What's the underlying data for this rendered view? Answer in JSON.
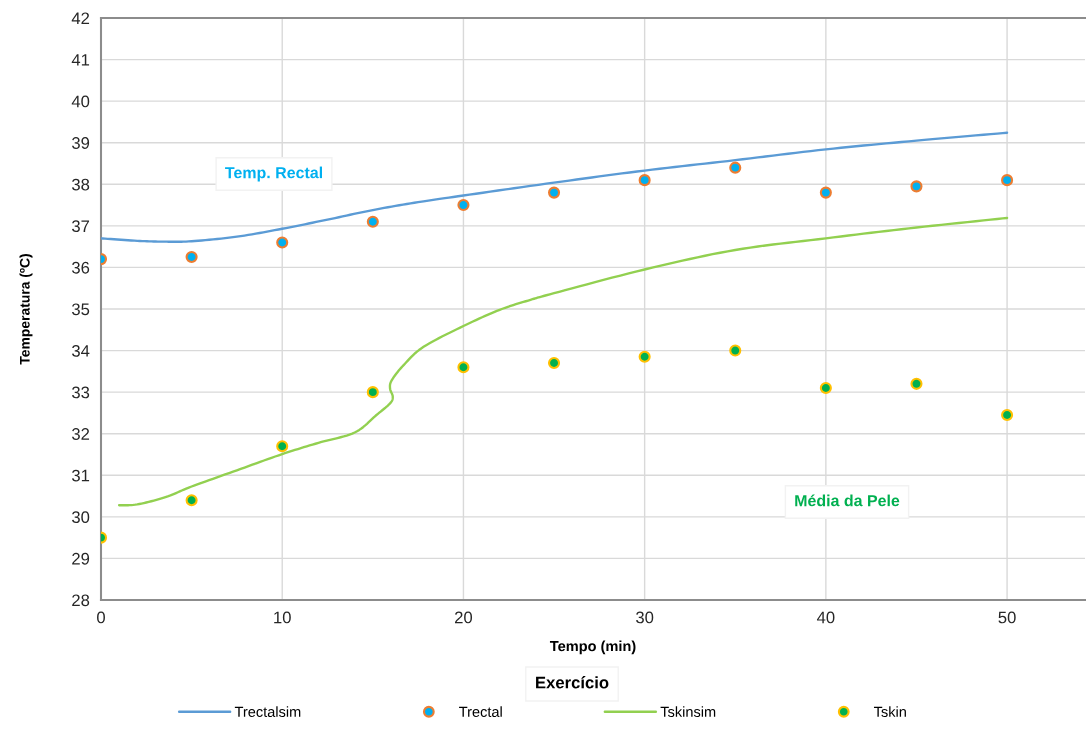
{
  "chart_data": {
    "type": "scatter",
    "xlabel": "Tempo (min)",
    "ylabel": "Temperatura (ºC)",
    "x": [
      0,
      5,
      10,
      15,
      20,
      25,
      30,
      35,
      40,
      45,
      50
    ],
    "series": [
      {
        "name": "Trectalsim",
        "type": "line",
        "marker": "none",
        "color": "#5b9bd5",
        "x": [
          0,
          2,
          3.5,
          5,
          7.5,
          10,
          12.5,
          15,
          17.5,
          20,
          25,
          30,
          35,
          40,
          45,
          50
        ],
        "values": [
          36.7,
          36.64,
          36.62,
          36.63,
          36.74,
          36.93,
          37.15,
          37.38,
          37.57,
          37.73,
          38.04,
          38.33,
          38.58,
          38.84,
          39.05,
          39.24
        ]
      },
      {
        "name": "Trectal",
        "color": "#00b0f0",
        "values": [
          36.2,
          36.25,
          36.6,
          37.1,
          37.5,
          37.8,
          38.1,
          38.4,
          37.8,
          37.95,
          38.1
        ]
      },
      {
        "name": "Tskinsim",
        "type": "line",
        "marker": "none",
        "color": "#92d050",
        "x": [
          1,
          2,
          3.6,
          5,
          7.5,
          10,
          12,
          14,
          15.2,
          15.95,
          16.1,
          15.95,
          16.05,
          16.7,
          17.8,
          20,
          22,
          23.7,
          25,
          30,
          35,
          40,
          45,
          50
        ],
        "values": [
          30.28,
          30.3,
          30.48,
          30.73,
          31.12,
          31.51,
          31.78,
          32.03,
          32.45,
          32.73,
          32.89,
          33.09,
          33.29,
          33.65,
          34.09,
          34.59,
          34.98,
          35.22,
          35.38,
          35.95,
          36.42,
          36.7,
          36.96,
          37.19
        ]
      },
      {
        "name": "Tskin",
        "color": "#00b050",
        "values": [
          29.5,
          30.4,
          31.7,
          33.0,
          33.6,
          33.7,
          33.85,
          34.0,
          33.1,
          33.2,
          32.45
        ]
      }
    ],
    "xlim": [
      0,
      54.3
    ],
    "xticks": [
      0,
      10,
      20,
      30,
      40,
      50
    ],
    "ylim": [
      28,
      42
    ],
    "yticks": [
      28,
      29,
      30,
      31,
      32,
      33,
      34,
      35,
      36,
      37,
      38,
      39,
      40,
      41,
      42
    ],
    "grid": true,
    "legend": "bottom",
    "marker": "circle",
    "line_style": "solid",
    "annotations": [
      "Temp. Rectal",
      "Média da Pele",
      "Exercício"
    ]
  }
}
